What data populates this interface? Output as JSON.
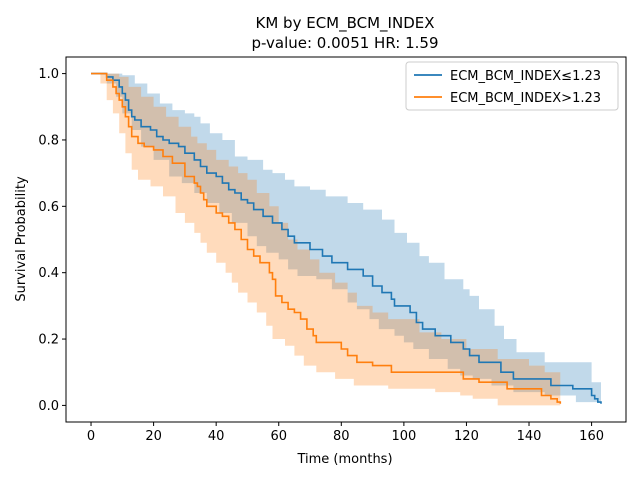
{
  "chart_data": {
    "type": "line",
    "subtype": "kaplan-meier step curves with confidence bands",
    "title": "KM by ECM_BCM_INDEX",
    "subtitle": "p-value: 0.0051  HR: 1.59",
    "xlabel": "Time (months)",
    "ylabel": "Survival Probability",
    "xlim": [
      -8,
      171
    ],
    "ylim": [
      -0.05,
      1.05
    ],
    "xticks": [
      0,
      20,
      40,
      60,
      80,
      100,
      120,
      140,
      160
    ],
    "yticks": [
      0.0,
      0.2,
      0.4,
      0.6,
      0.8,
      1.0
    ],
    "ytick_labels": [
      "0.0",
      "0.2",
      "0.4",
      "0.6",
      "0.8",
      "1.0"
    ],
    "grid": false,
    "legend_position": "top-right",
    "series": [
      {
        "name": "ECM_BCM_INDEX≤1.23",
        "color": "#1f77b4",
        "points": [
          [
            0,
            1.0
          ],
          [
            5,
            0.99
          ],
          [
            7,
            0.98
          ],
          [
            9,
            0.96
          ],
          [
            10,
            0.94
          ],
          [
            11,
            0.92
          ],
          [
            12,
            0.89
          ],
          [
            13,
            0.87
          ],
          [
            14,
            0.86
          ],
          [
            16,
            0.84
          ],
          [
            19,
            0.83
          ],
          [
            21,
            0.81
          ],
          [
            23,
            0.8
          ],
          [
            25,
            0.79
          ],
          [
            28,
            0.78
          ],
          [
            30,
            0.76
          ],
          [
            33,
            0.74
          ],
          [
            35,
            0.72
          ],
          [
            37,
            0.7
          ],
          [
            40,
            0.69
          ],
          [
            42,
            0.67
          ],
          [
            44,
            0.65
          ],
          [
            46,
            0.64
          ],
          [
            48,
            0.62
          ],
          [
            50,
            0.61
          ],
          [
            52,
            0.59
          ],
          [
            55,
            0.57
          ],
          [
            58,
            0.55
          ],
          [
            61,
            0.53
          ],
          [
            63,
            0.51
          ],
          [
            65,
            0.49
          ],
          [
            70,
            0.47
          ],
          [
            74,
            0.45
          ],
          [
            77,
            0.43
          ],
          [
            82,
            0.41
          ],
          [
            87,
            0.39
          ],
          [
            90,
            0.36
          ],
          [
            93,
            0.34
          ],
          [
            96,
            0.32
          ],
          [
            97,
            0.3
          ],
          [
            102,
            0.28
          ],
          [
            104,
            0.25
          ],
          [
            106,
            0.23
          ],
          [
            110,
            0.21
          ],
          [
            115,
            0.19
          ],
          [
            119,
            0.17
          ],
          [
            121,
            0.15
          ],
          [
            124,
            0.13
          ],
          [
            131,
            0.1
          ],
          [
            135,
            0.08
          ],
          [
            147,
            0.06
          ],
          [
            154,
            0.05
          ],
          [
            160,
            0.03
          ],
          [
            161,
            0.02
          ],
          [
            162,
            0.01
          ],
          [
            163,
            0.005
          ]
        ],
        "ci_upper": [
          [
            0,
            1.0
          ],
          [
            5,
            1.0
          ],
          [
            10,
            0.995
          ],
          [
            14,
            0.97
          ],
          [
            18,
            0.94
          ],
          [
            22,
            0.91
          ],
          [
            26,
            0.89
          ],
          [
            30,
            0.88
          ],
          [
            33,
            0.87
          ],
          [
            35,
            0.85
          ],
          [
            38,
            0.82
          ],
          [
            42,
            0.8
          ],
          [
            46,
            0.75
          ],
          [
            50,
            0.74
          ],
          [
            55,
            0.71
          ],
          [
            58,
            0.7
          ],
          [
            62,
            0.68
          ],
          [
            65,
            0.66
          ],
          [
            70,
            0.65
          ],
          [
            75,
            0.63
          ],
          [
            82,
            0.61
          ],
          [
            87,
            0.59
          ],
          [
            93,
            0.56
          ],
          [
            97,
            0.52
          ],
          [
            101,
            0.49
          ],
          [
            105,
            0.45
          ],
          [
            108,
            0.43
          ],
          [
            113,
            0.38
          ],
          [
            119,
            0.35
          ],
          [
            121,
            0.33
          ],
          [
            124,
            0.29
          ],
          [
            129,
            0.24
          ],
          [
            132,
            0.2
          ],
          [
            136,
            0.16
          ],
          [
            145,
            0.13
          ],
          [
            155,
            0.13
          ],
          [
            160,
            0.07
          ],
          [
            163,
            0.05
          ]
        ],
        "ci_lower": [
          [
            0,
            1.0
          ],
          [
            5,
            0.97
          ],
          [
            8,
            0.93
          ],
          [
            10,
            0.88
          ],
          [
            13,
            0.83
          ],
          [
            16,
            0.78
          ],
          [
            20,
            0.74
          ],
          [
            25,
            0.69
          ],
          [
            29,
            0.67
          ],
          [
            33,
            0.64
          ],
          [
            37,
            0.61
          ],
          [
            41,
            0.58
          ],
          [
            45,
            0.55
          ],
          [
            50,
            0.51
          ],
          [
            53,
            0.48
          ],
          [
            56,
            0.46
          ],
          [
            60,
            0.44
          ],
          [
            63,
            0.41
          ],
          [
            66,
            0.39
          ],
          [
            72,
            0.38
          ],
          [
            77,
            0.35
          ],
          [
            82,
            0.31
          ],
          [
            85,
            0.29
          ],
          [
            89,
            0.26
          ],
          [
            92,
            0.23
          ],
          [
            97,
            0.21
          ],
          [
            100,
            0.19
          ],
          [
            103,
            0.17
          ],
          [
            108,
            0.14
          ],
          [
            114,
            0.11
          ],
          [
            118,
            0.09
          ],
          [
            122,
            0.08
          ],
          [
            128,
            0.06
          ],
          [
            135,
            0.04
          ],
          [
            145,
            0.03
          ],
          [
            155,
            0.01
          ],
          [
            163,
            0.0
          ]
        ]
      },
      {
        "name": "ECM_BCM_INDEX>1.23",
        "color": "#ff7f0e",
        "points": [
          [
            0,
            1.0
          ],
          [
            5,
            0.98
          ],
          [
            7,
            0.96
          ],
          [
            8,
            0.94
          ],
          [
            9,
            0.92
          ],
          [
            10,
            0.9
          ],
          [
            11,
            0.87
          ],
          [
            12,
            0.84
          ],
          [
            13,
            0.81
          ],
          [
            15,
            0.79
          ],
          [
            17,
            0.78
          ],
          [
            20,
            0.77
          ],
          [
            23,
            0.75
          ],
          [
            26,
            0.73
          ],
          [
            30,
            0.69
          ],
          [
            33,
            0.67
          ],
          [
            34,
            0.66
          ],
          [
            35,
            0.64
          ],
          [
            36,
            0.62
          ],
          [
            37,
            0.6
          ],
          [
            40,
            0.58
          ],
          [
            42,
            0.57
          ],
          [
            44,
            0.55
          ],
          [
            46,
            0.53
          ],
          [
            48,
            0.5
          ],
          [
            50,
            0.47
          ],
          [
            52,
            0.45
          ],
          [
            54,
            0.43
          ],
          [
            57,
            0.4
          ],
          [
            58,
            0.38
          ],
          [
            59,
            0.33
          ],
          [
            61,
            0.31
          ],
          [
            63,
            0.29
          ],
          [
            65,
            0.28
          ],
          [
            67,
            0.26
          ],
          [
            69,
            0.23
          ],
          [
            71,
            0.21
          ],
          [
            72,
            0.19
          ],
          [
            80,
            0.17
          ],
          [
            82,
            0.15
          ],
          [
            85,
            0.13
          ],
          [
            90,
            0.12
          ],
          [
            96,
            0.1
          ],
          [
            119,
            0.08
          ],
          [
            124,
            0.07
          ],
          [
            133,
            0.05
          ],
          [
            144,
            0.03
          ],
          [
            147,
            0.02
          ],
          [
            149,
            0.01
          ],
          [
            150,
            0.005
          ]
        ],
        "ci_upper": [
          [
            0,
            1.0
          ],
          [
            5,
            1.0
          ],
          [
            9,
            0.99
          ],
          [
            12,
            0.96
          ],
          [
            16,
            0.93
          ],
          [
            20,
            0.9
          ],
          [
            24,
            0.87
          ],
          [
            28,
            0.84
          ],
          [
            32,
            0.81
          ],
          [
            34,
            0.79
          ],
          [
            37,
            0.77
          ],
          [
            40,
            0.74
          ],
          [
            44,
            0.72
          ],
          [
            47,
            0.7
          ],
          [
            50,
            0.68
          ],
          [
            53,
            0.64
          ],
          [
            57,
            0.6
          ],
          [
            60,
            0.55
          ],
          [
            63,
            0.5
          ],
          [
            66,
            0.47
          ],
          [
            70,
            0.44
          ],
          [
            73,
            0.4
          ],
          [
            78,
            0.37
          ],
          [
            82,
            0.34
          ],
          [
            85,
            0.3
          ],
          [
            90,
            0.28
          ],
          [
            95,
            0.26
          ],
          [
            105,
            0.22
          ],
          [
            112,
            0.2
          ],
          [
            120,
            0.17
          ],
          [
            130,
            0.14
          ],
          [
            140,
            0.12
          ],
          [
            145,
            0.1
          ],
          [
            150,
            0.08
          ]
        ],
        "ci_lower": [
          [
            0,
            1.0
          ],
          [
            3,
            0.97
          ],
          [
            5,
            0.92
          ],
          [
            7,
            0.88
          ],
          [
            9,
            0.82
          ],
          [
            11,
            0.76
          ],
          [
            13,
            0.71
          ],
          [
            15,
            0.68
          ],
          [
            19,
            0.66
          ],
          [
            23,
            0.63
          ],
          [
            27,
            0.58
          ],
          [
            30,
            0.55
          ],
          [
            33,
            0.52
          ],
          [
            35,
            0.49
          ],
          [
            37,
            0.46
          ],
          [
            40,
            0.43
          ],
          [
            43,
            0.4
          ],
          [
            45,
            0.37
          ],
          [
            47,
            0.34
          ],
          [
            50,
            0.31
          ],
          [
            53,
            0.28
          ],
          [
            56,
            0.24
          ],
          [
            58,
            0.2
          ],
          [
            62,
            0.18
          ],
          [
            65,
            0.15
          ],
          [
            68,
            0.12
          ],
          [
            72,
            0.1
          ],
          [
            78,
            0.08
          ],
          [
            84,
            0.06
          ],
          [
            95,
            0.05
          ],
          [
            110,
            0.04
          ],
          [
            118,
            0.03
          ],
          [
            122,
            0.02
          ],
          [
            130,
            0.0
          ],
          [
            150,
            0.0
          ]
        ]
      }
    ]
  }
}
